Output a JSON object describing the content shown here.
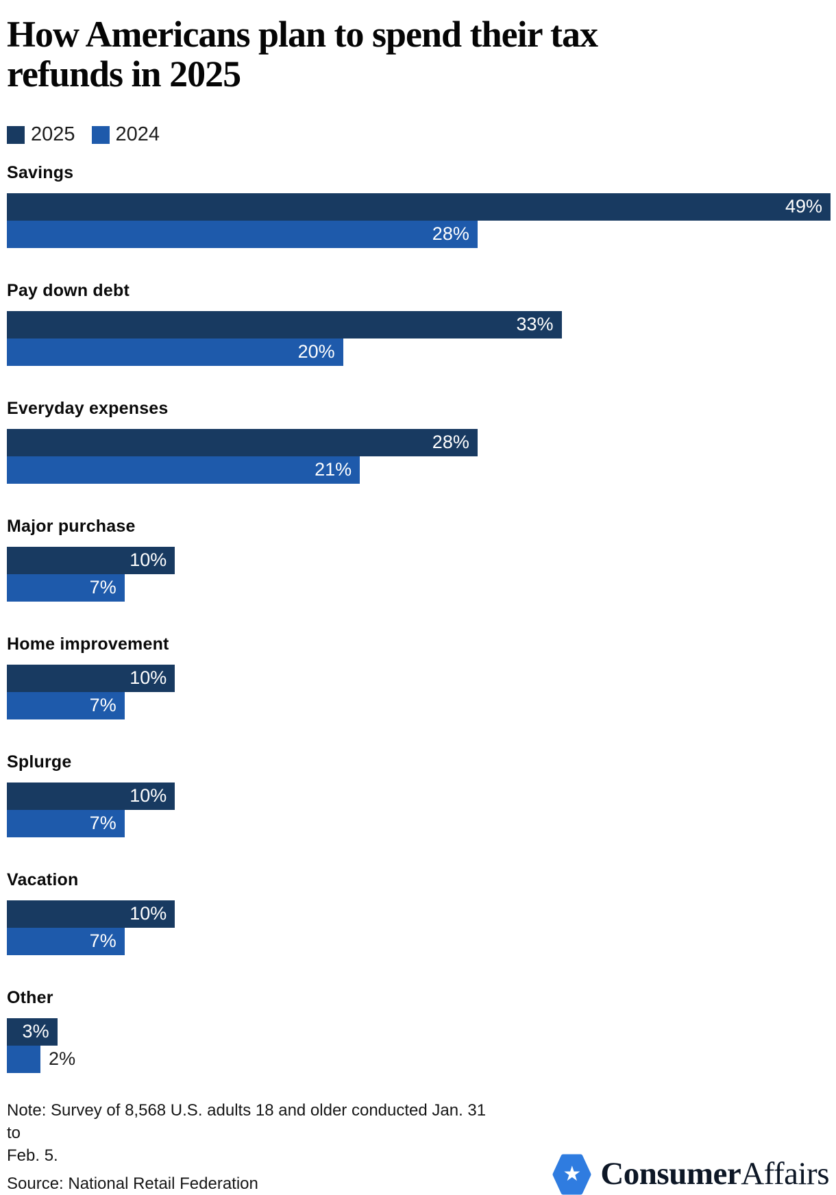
{
  "title": "How Americans plan to spend their tax refunds in 2025",
  "legend": [
    {
      "label": "2025",
      "color": "#183A61"
    },
    {
      "label": "2024",
      "color": "#1E5AAB"
    }
  ],
  "chart_data": {
    "type": "bar",
    "orientation": "horizontal",
    "title": "How Americans plan to spend their tax refunds in 2025",
    "categories": [
      "Savings",
      "Pay down debt",
      "Everyday expenses",
      "Major purchase",
      "Home improvement",
      "Splurge",
      "Vacation",
      "Other"
    ],
    "series": [
      {
        "name": "2025",
        "color": "#183A61",
        "values": [
          49,
          33,
          28,
          10,
          10,
          10,
          10,
          3
        ]
      },
      {
        "name": "2024",
        "color": "#1E5AAB",
        "values": [
          28,
          20,
          21,
          7,
          7,
          7,
          7,
          2
        ]
      }
    ],
    "value_suffix": "%",
    "xlim": [
      0,
      49
    ],
    "grid": false,
    "legend_position": "top-left",
    "value_labels": "inside-end-white, outside-black-when-bar-too-small"
  },
  "footer": {
    "note_lines": [
      "Note: Survey of 8,568 U.S. adults 18 and older conducted Jan. 31 to",
      "Feb. 5."
    ],
    "source": "Source: National Retail Federation"
  },
  "logo": {
    "brand_bold": "Consumer",
    "brand_regular": "Affairs",
    "hex_color": "#2F7CE0",
    "star_icon": "star-icon"
  }
}
